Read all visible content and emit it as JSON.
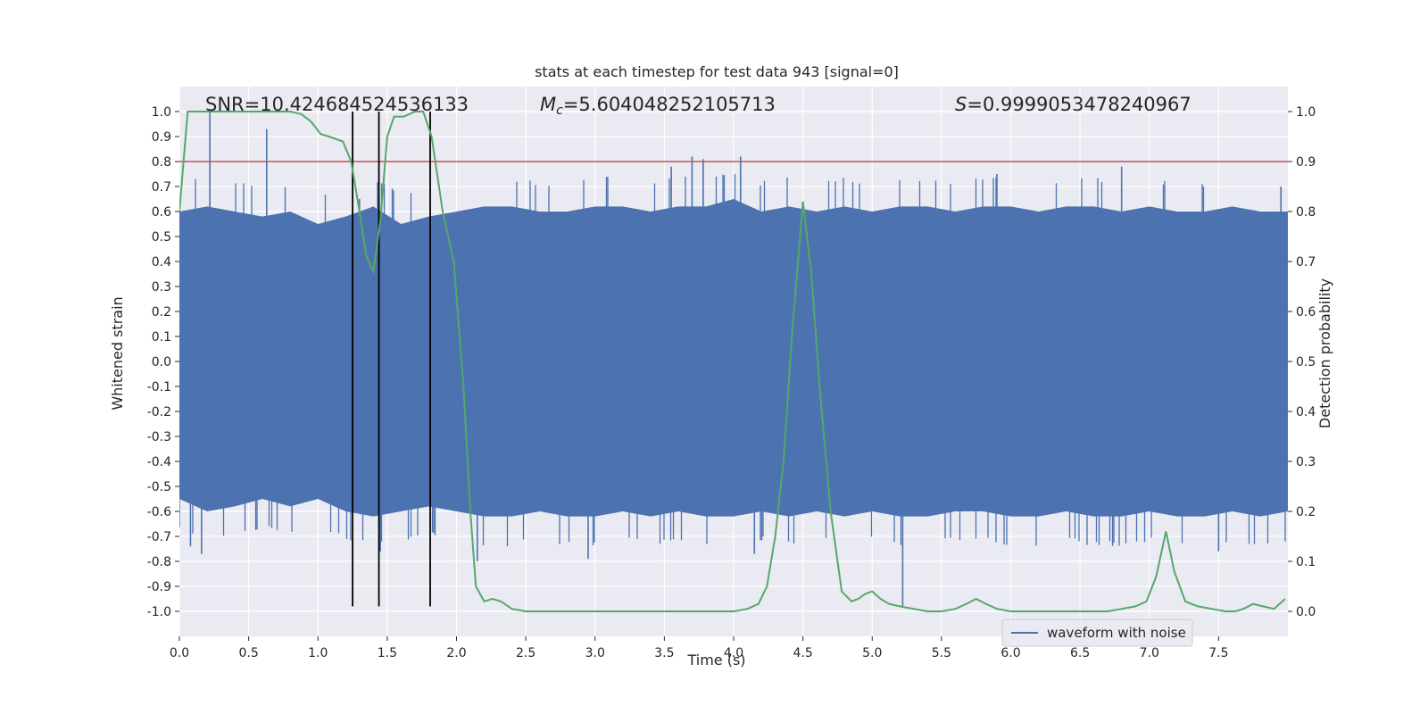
{
  "chart_data": {
    "type": "line",
    "title": "stats at each timestep for test data 943 [signal=0]",
    "xlabel": "Time (s)",
    "ylabel": "Whitened strain",
    "ylabel_right": "Detection probability",
    "xlim": [
      0.0,
      8.0
    ],
    "ylim": [
      -1.1,
      1.1
    ],
    "ylim_right": [
      -0.05,
      1.05
    ],
    "x_ticks": [
      "0.0",
      "0.5",
      "1.0",
      "1.5",
      "2.0",
      "2.5",
      "3.0",
      "3.5",
      "4.0",
      "4.5",
      "5.0",
      "5.5",
      "6.0",
      "6.5",
      "7.0",
      "7.5"
    ],
    "x_tick_values": [
      0.0,
      0.5,
      1.0,
      1.5,
      2.0,
      2.5,
      3.0,
      3.5,
      4.0,
      4.5,
      5.0,
      5.5,
      6.0,
      6.5,
      7.0,
      7.5
    ],
    "y_ticks": [
      "1.0",
      "0.9",
      "0.8",
      "0.7",
      "0.6",
      "0.5",
      "0.4",
      "0.3",
      "0.2",
      "0.1",
      "0.0",
      "-0.1",
      "-0.2",
      "-0.3",
      "-0.4",
      "-0.5",
      "-0.6",
      "-0.7",
      "-0.8",
      "-0.9",
      "-1.0"
    ],
    "y_tick_values": [
      1.0,
      0.9,
      0.8,
      0.7,
      0.6,
      0.5,
      0.4,
      0.3,
      0.2,
      0.1,
      0.0,
      -0.1,
      -0.2,
      -0.3,
      -0.4,
      -0.5,
      -0.6,
      -0.7,
      -0.8,
      -0.9,
      -1.0
    ],
    "y_ticks_right": [
      "1.0",
      "0.9",
      "0.8",
      "0.7",
      "0.6",
      "0.5",
      "0.4",
      "0.3",
      "0.2",
      "0.1",
      "0.0"
    ],
    "y_tick_values_right": [
      1.0,
      0.9,
      0.8,
      0.7,
      0.6,
      0.5,
      0.4,
      0.3,
      0.2,
      0.1,
      0.0
    ],
    "grid": true,
    "legend": {
      "position": "lower-right",
      "entries": [
        "waveform with noise"
      ]
    },
    "annotations": {
      "snr": "SNR=10.424684524536133",
      "mc_symbol": "M",
      "mc_sub": "c",
      "mc_value": "=5.604048252105713",
      "s_symbol": "S",
      "s_value": "=0.9999053478240967"
    },
    "threshold_right": 0.9,
    "vertical_lines": [
      1.25,
      1.44,
      1.81
    ],
    "vertical_line_range": [
      -0.98,
      1.0
    ],
    "series": [
      {
        "name": "waveform with noise",
        "color": "#4c72b0",
        "envelope": {
          "x": [
            0.0,
            0.2,
            0.4,
            0.6,
            0.8,
            1.0,
            1.2,
            1.4,
            1.6,
            1.8,
            2.0,
            2.2,
            2.4,
            2.6,
            2.8,
            3.0,
            3.2,
            3.4,
            3.6,
            3.8,
            4.0,
            4.2,
            4.4,
            4.6,
            4.8,
            5.0,
            5.2,
            5.4,
            5.6,
            5.8,
            6.0,
            6.2,
            6.4,
            6.6,
            6.8,
            7.0,
            7.2,
            7.4,
            7.6,
            7.8,
            8.0
          ],
          "upper": [
            0.6,
            0.62,
            0.6,
            0.58,
            0.6,
            0.55,
            0.58,
            0.62,
            0.55,
            0.58,
            0.6,
            0.62,
            0.62,
            0.6,
            0.6,
            0.62,
            0.62,
            0.6,
            0.62,
            0.62,
            0.65,
            0.6,
            0.62,
            0.6,
            0.62,
            0.6,
            0.62,
            0.62,
            0.6,
            0.62,
            0.62,
            0.6,
            0.62,
            0.62,
            0.6,
            0.62,
            0.6,
            0.6,
            0.62,
            0.6,
            0.6
          ],
          "lower": [
            -0.55,
            -0.6,
            -0.58,
            -0.55,
            -0.58,
            -0.55,
            -0.6,
            -0.62,
            -0.6,
            -0.58,
            -0.6,
            -0.62,
            -0.62,
            -0.6,
            -0.62,
            -0.62,
            -0.6,
            -0.62,
            -0.6,
            -0.62,
            -0.62,
            -0.6,
            -0.62,
            -0.6,
            -0.62,
            -0.6,
            -0.62,
            -0.62,
            -0.6,
            -0.6,
            -0.62,
            -0.62,
            -0.6,
            -0.62,
            -0.62,
            -0.6,
            -0.62,
            -0.62,
            -0.6,
            -0.62,
            -0.6
          ],
          "spikes_up": [
            [
              0.22,
              1.0
            ],
            [
              0.63,
              0.93
            ],
            [
              1.3,
              0.65
            ],
            [
              3.55,
              0.78
            ],
            [
              3.7,
              0.82
            ],
            [
              3.78,
              0.81
            ],
            [
              4.05,
              0.82
            ],
            [
              5.9,
              0.75
            ],
            [
              6.8,
              0.78
            ],
            [
              7.95,
              0.7
            ]
          ],
          "spikes_down": [
            [
              0.08,
              -0.74
            ],
            [
              0.16,
              -0.77
            ],
            [
              1.45,
              -0.76
            ],
            [
              2.15,
              -0.8
            ],
            [
              2.95,
              -0.79
            ],
            [
              4.15,
              -0.77
            ],
            [
              5.22,
              -0.98
            ],
            [
              7.5,
              -0.76
            ]
          ]
        }
      },
      {
        "name": "",
        "color": "#55a868",
        "axis": "right",
        "x": [
          0.0,
          0.06,
          0.12,
          0.2,
          0.3,
          0.4,
          0.5,
          0.6,
          0.7,
          0.8,
          0.88,
          0.95,
          1.02,
          1.08,
          1.18,
          1.24,
          1.3,
          1.35,
          1.4,
          1.45,
          1.5,
          1.55,
          1.62,
          1.7,
          1.76,
          1.82,
          1.9,
          1.98,
          2.05,
          2.1,
          2.14,
          2.2,
          2.26,
          2.32,
          2.4,
          2.5,
          2.6,
          2.8,
          3.0,
          3.2,
          3.5,
          3.8,
          4.0,
          4.1,
          4.18,
          4.24,
          4.3,
          4.36,
          4.42,
          4.5,
          4.56,
          4.62,
          4.7,
          4.78,
          4.85,
          4.9,
          4.95,
          5.0,
          5.06,
          5.12,
          5.2,
          5.3,
          5.4,
          5.5,
          5.6,
          5.68,
          5.75,
          5.82,
          5.9,
          6.0,
          6.1,
          6.2,
          6.3,
          6.4,
          6.5,
          6.6,
          6.7,
          6.8,
          6.9,
          6.98,
          7.05,
          7.12,
          7.18,
          7.26,
          7.35,
          7.45,
          7.55,
          7.62,
          7.68,
          7.75,
          7.82,
          7.9,
          7.98
        ],
        "y": [
          0.8,
          1.0,
          1.0,
          1.0,
          1.0,
          1.0,
          1.0,
          1.0,
          1.0,
          1.0,
          0.995,
          0.98,
          0.955,
          0.95,
          0.94,
          0.9,
          0.8,
          0.71,
          0.68,
          0.78,
          0.95,
          0.99,
          0.99,
          1.0,
          1.0,
          0.95,
          0.8,
          0.7,
          0.45,
          0.2,
          0.05,
          0.02,
          0.025,
          0.02,
          0.005,
          0.0,
          0.0,
          0.0,
          0.0,
          0.0,
          0.0,
          0.0,
          0.0,
          0.005,
          0.015,
          0.05,
          0.15,
          0.3,
          0.55,
          0.82,
          0.68,
          0.45,
          0.2,
          0.04,
          0.02,
          0.025,
          0.035,
          0.04,
          0.025,
          0.015,
          0.01,
          0.005,
          0.0,
          0.0,
          0.005,
          0.015,
          0.025,
          0.015,
          0.005,
          0.0,
          0.0,
          0.0,
          0.0,
          0.0,
          0.0,
          0.0,
          0.0,
          0.005,
          0.01,
          0.02,
          0.07,
          0.16,
          0.08,
          0.02,
          0.01,
          0.005,
          0.0,
          0.0,
          0.005,
          0.015,
          0.01,
          0.005,
          0.025
        ]
      }
    ]
  }
}
